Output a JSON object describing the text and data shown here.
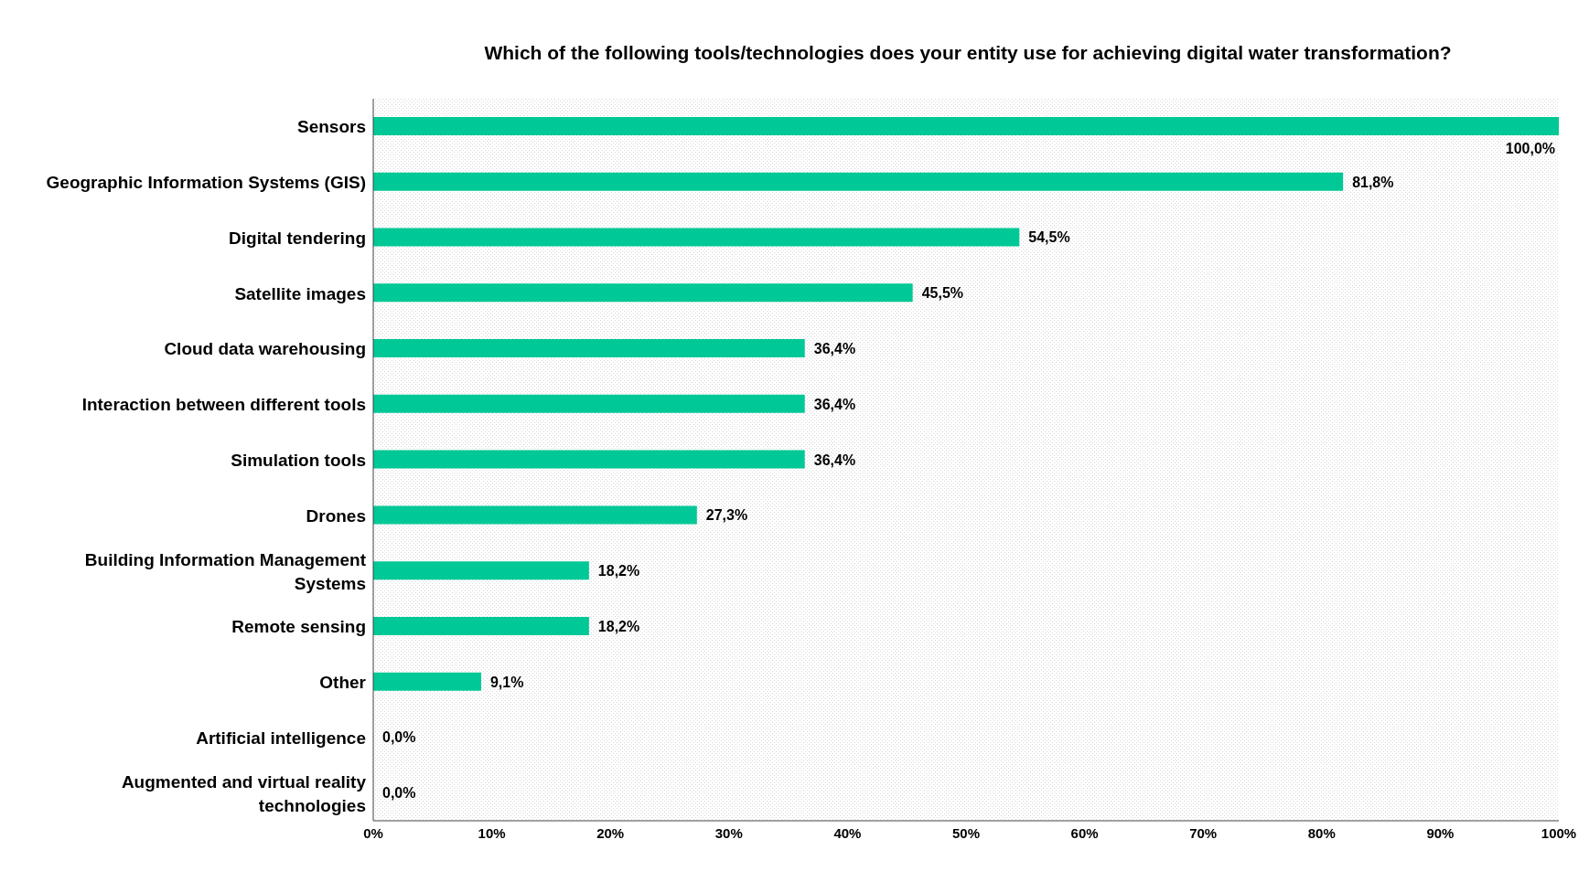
{
  "chart_data": {
    "type": "bar",
    "orientation": "horizontal",
    "title": "Which of the following tools/technologies does your entity use for achieving digital water transformation?",
    "categories": [
      "Sensors",
      "Geographic Information Systems (GIS)",
      "Digital tendering",
      "Satellite images",
      "Cloud data warehousing",
      "Interaction between different tools",
      "Simulation tools",
      "Drones",
      "Building Information Management Systems",
      "Remote sensing",
      "Other",
      "Artificial intelligence",
      "Augmented and virtual reality technologies"
    ],
    "values": [
      100,
      81.8,
      54.5,
      45.5,
      36.4,
      36.4,
      36.4,
      27.3,
      18.2,
      18.2,
      9.1,
      0,
      0
    ],
    "value_labels": [
      "100,0%",
      "81,8%",
      "54,5%",
      "45,5%",
      "36,4%",
      "36,4%",
      "36,4%",
      "27,3%",
      "18,2%",
      "18,2%",
      "9,1%",
      "0,0%",
      "0,0%"
    ],
    "color": "#00c896",
    "xlim": [
      0,
      100
    ],
    "xticks": [
      {
        "value": 0,
        "label": "0%"
      },
      {
        "value": 10,
        "label": "10%"
      },
      {
        "value": 20,
        "label": "20%"
      },
      {
        "value": 30,
        "label": "30%"
      },
      {
        "value": 40,
        "label": "40%"
      },
      {
        "value": 50,
        "label": "50%"
      },
      {
        "value": 60,
        "label": "60%"
      },
      {
        "value": 70,
        "label": "70%"
      },
      {
        "value": 80,
        "label": "80%"
      },
      {
        "value": 90,
        "label": "90%"
      },
      {
        "value": 100,
        "label": "100%"
      }
    ],
    "grid": false,
    "legend": false
  }
}
